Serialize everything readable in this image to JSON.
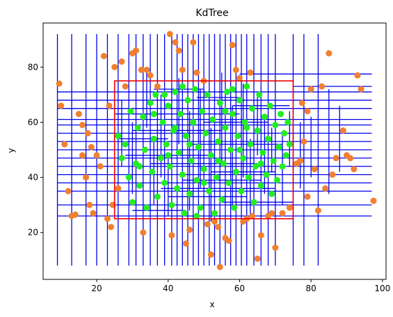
{
  "chart_data": {
    "type": "scatter",
    "title": "KdTree",
    "xlabel": "x",
    "ylabel": "y",
    "xlim": [
      5,
      101
    ],
    "ylim": [
      3,
      96
    ],
    "xticks": [
      20,
      40,
      60,
      80,
      100
    ],
    "yticks": [
      20,
      40,
      60,
      80
    ],
    "grid": false,
    "colors": {
      "inside": "#22ee22",
      "outside": "#f08030",
      "tree": "#0000ee",
      "query": "#ee0000"
    },
    "query_rect": {
      "x0": 25,
      "x1": 75,
      "y0": 25,
      "y1": 75
    },
    "tree_xmin": 9,
    "tree_xmax": 97,
    "tree_ymin": 8,
    "tree_ymax": 92,
    "vertical_splits": [
      [
        9,
        8,
        92
      ],
      [
        13,
        8,
        92
      ],
      [
        17,
        8,
        92
      ],
      [
        20,
        8,
        92
      ],
      [
        23,
        8,
        92
      ],
      [
        26,
        8,
        92
      ],
      [
        29,
        8,
        92
      ],
      [
        31,
        8,
        92
      ],
      [
        33,
        8,
        92
      ],
      [
        35,
        8,
        92
      ],
      [
        37,
        8,
        92
      ],
      [
        39,
        8,
        92
      ],
      [
        41,
        8,
        92
      ],
      [
        42.5,
        8,
        92
      ],
      [
        44,
        8,
        92
      ],
      [
        45.5,
        8,
        92
      ],
      [
        47,
        8,
        92
      ],
      [
        48.5,
        8,
        92
      ],
      [
        50,
        8,
        92
      ],
      [
        51.5,
        8,
        92
      ],
      [
        53,
        8,
        92
      ],
      [
        54.5,
        8,
        92
      ],
      [
        56,
        8,
        92
      ],
      [
        57.5,
        8,
        92
      ],
      [
        59,
        8,
        92
      ],
      [
        60.5,
        8,
        92
      ],
      [
        62,
        8,
        92
      ],
      [
        64,
        8,
        92
      ],
      [
        66,
        8,
        92
      ],
      [
        68,
        8,
        92
      ],
      [
        70,
        8,
        92
      ],
      [
        75,
        8,
        92
      ],
      [
        78,
        8,
        92
      ],
      [
        82,
        8,
        92
      ],
      [
        27,
        44,
        68
      ],
      [
        30,
        34,
        60
      ],
      [
        34,
        58,
        78
      ],
      [
        36,
        30,
        55
      ],
      [
        38,
        40,
        70
      ],
      [
        40,
        26,
        48
      ],
      [
        43,
        52,
        76
      ],
      [
        46,
        28,
        64
      ],
      [
        49,
        36,
        72
      ],
      [
        52,
        24,
        58
      ],
      [
        55,
        46,
        78
      ],
      [
        58,
        30,
        66
      ],
      [
        61,
        40,
        74
      ],
      [
        63,
        26,
        54
      ],
      [
        65,
        48,
        70
      ],
      [
        67,
        34,
        62
      ],
      [
        69,
        42,
        58
      ],
      [
        72,
        30,
        56
      ],
      [
        74,
        44,
        64
      ],
      [
        77,
        36,
        60
      ],
      [
        80,
        40,
        62
      ],
      [
        85,
        34,
        72
      ],
      [
        88,
        42,
        66
      ]
    ],
    "horizontal_splits": [
      [
        9,
        97,
        26
      ],
      [
        9,
        97,
        30
      ],
      [
        9,
        97,
        35
      ],
      [
        9,
        97,
        38
      ],
      [
        9,
        97,
        41
      ],
      [
        9,
        97,
        44
      ],
      [
        9,
        97,
        47
      ],
      [
        9,
        97,
        50
      ],
      [
        9,
        97,
        53
      ],
      [
        9,
        97,
        56
      ],
      [
        9,
        97,
        59
      ],
      [
        9,
        97,
        61
      ],
      [
        9,
        97,
        65
      ],
      [
        9,
        97,
        68
      ],
      [
        9,
        97,
        71
      ],
      [
        60,
        97,
        77.5
      ],
      [
        75,
        97,
        73
      ],
      [
        25,
        60,
        63
      ],
      [
        30,
        55,
        57
      ],
      [
        28,
        52,
        48
      ],
      [
        35,
        65,
        45
      ],
      [
        38,
        70,
        36
      ],
      [
        40,
        62,
        33
      ],
      [
        44,
        66,
        39
      ],
      [
        46,
        72,
        52
      ],
      [
        48,
        60,
        69
      ],
      [
        50,
        68,
        60
      ],
      [
        52,
        70,
        42
      ],
      [
        36,
        50,
        72
      ],
      [
        30,
        45,
        28
      ],
      [
        55,
        75,
        31
      ],
      [
        26,
        40,
        54
      ],
      [
        58,
        74,
        66
      ],
      [
        42,
        58,
        75
      ]
    ],
    "points_outside": [
      [
        9.5,
        74
      ],
      [
        10,
        66
      ],
      [
        11,
        52
      ],
      [
        13,
        26
      ],
      [
        14,
        26.5
      ],
      [
        15,
        63
      ],
      [
        16,
        59
      ],
      [
        17,
        40
      ],
      [
        17.5,
        56
      ],
      [
        18,
        30
      ],
      [
        18.5,
        51
      ],
      [
        19,
        27
      ],
      [
        20,
        48
      ],
      [
        21,
        44
      ],
      [
        22,
        84
      ],
      [
        23,
        25
      ],
      [
        23.5,
        66
      ],
      [
        24,
        22
      ],
      [
        24.5,
        30
      ],
      [
        25,
        80
      ],
      [
        27,
        82
      ],
      [
        28,
        73
      ],
      [
        30,
        85
      ],
      [
        31,
        86
      ],
      [
        32.5,
        79
      ],
      [
        33,
        20
      ],
      [
        34,
        79
      ],
      [
        35,
        77
      ],
      [
        37,
        73
      ],
      [
        40.5,
        92
      ],
      [
        41,
        19
      ],
      [
        42,
        89
      ],
      [
        43,
        86
      ],
      [
        44,
        79
      ],
      [
        45,
        16
      ],
      [
        46,
        21
      ],
      [
        47,
        89
      ],
      [
        48,
        78
      ],
      [
        50,
        75
      ],
      [
        51,
        23
      ],
      [
        52,
        12
      ],
      [
        53,
        24
      ],
      [
        54,
        22
      ],
      [
        54.5,
        7.5
      ],
      [
        56,
        18
      ],
      [
        57,
        17
      ],
      [
        58,
        88
      ],
      [
        59,
        79
      ],
      [
        60,
        76
      ],
      [
        61,
        24
      ],
      [
        62,
        25
      ],
      [
        63,
        78
      ],
      [
        63.5,
        26
      ],
      [
        65,
        10.5
      ],
      [
        66,
        19
      ],
      [
        68,
        26
      ],
      [
        69,
        27
      ],
      [
        70,
        14.5
      ],
      [
        72,
        27
      ],
      [
        74,
        29
      ],
      [
        76,
        45
      ],
      [
        77,
        46
      ],
      [
        77.5,
        67
      ],
      [
        78,
        53
      ],
      [
        79,
        33
      ],
      [
        80,
        72
      ],
      [
        81,
        43
      ],
      [
        82,
        28
      ],
      [
        83,
        73
      ],
      [
        84,
        36
      ],
      [
        85,
        85
      ],
      [
        86,
        41
      ],
      [
        87,
        47
      ],
      [
        89,
        57
      ],
      [
        90,
        48
      ],
      [
        91,
        47
      ],
      [
        92,
        43
      ],
      [
        93,
        77
      ],
      [
        94,
        72
      ],
      [
        97.5,
        31.5
      ],
      [
        16,
        48
      ],
      [
        12,
        35
      ],
      [
        26,
        36
      ],
      [
        79,
        64
      ]
    ],
    "points_inside": [
      [
        26,
        55
      ],
      [
        27,
        47
      ],
      [
        28,
        52
      ],
      [
        29,
        40
      ],
      [
        29.5,
        64
      ],
      [
        30,
        31
      ],
      [
        31,
        45
      ],
      [
        31.5,
        58
      ],
      [
        32,
        37
      ],
      [
        33,
        62
      ],
      [
        33.5,
        50
      ],
      [
        34,
        29
      ],
      [
        35,
        67
      ],
      [
        35.5,
        42
      ],
      [
        36,
        54
      ],
      [
        36.5,
        70
      ],
      [
        37,
        33
      ],
      [
        38,
        47
      ],
      [
        38.5,
        60
      ],
      [
        39,
        38
      ],
      [
        39.5,
        52
      ],
      [
        40,
        66
      ],
      [
        40.5,
        44
      ],
      [
        41,
        30
      ],
      [
        41.5,
        57
      ],
      [
        42,
        71
      ],
      [
        42.5,
        36
      ],
      [
        43,
        49
      ],
      [
        43.5,
        63
      ],
      [
        44,
        41
      ],
      [
        44.5,
        27
      ],
      [
        45,
        55
      ],
      [
        45.5,
        68
      ],
      [
        46,
        34
      ],
      [
        46.5,
        46
      ],
      [
        47,
        60
      ],
      [
        47.5,
        72
      ],
      [
        48,
        39
      ],
      [
        48.5,
        51
      ],
      [
        49,
        29
      ],
      [
        49.5,
        64
      ],
      [
        50,
        43
      ],
      [
        50.5,
        56
      ],
      [
        51,
        70
      ],
      [
        51.5,
        35
      ],
      [
        52,
        48
      ],
      [
        52.5,
        61
      ],
      [
        53,
        27
      ],
      [
        53.5,
        40
      ],
      [
        54,
        53
      ],
      [
        54.5,
        67
      ],
      [
        55,
        32
      ],
      [
        55.5,
        45
      ],
      [
        56,
        58
      ],
      [
        56.5,
        71
      ],
      [
        57,
        38
      ],
      [
        57.5,
        50
      ],
      [
        58,
        63
      ],
      [
        58.5,
        29
      ],
      [
        59,
        42
      ],
      [
        59.5,
        55
      ],
      [
        60,
        68
      ],
      [
        60.5,
        35
      ],
      [
        61,
        47
      ],
      [
        61.5,
        60
      ],
      [
        62,
        73
      ],
      [
        62.5,
        40
      ],
      [
        63,
        52
      ],
      [
        63.5,
        65
      ],
      [
        64,
        31
      ],
      [
        64.5,
        44
      ],
      [
        65,
        57
      ],
      [
        65.5,
        70
      ],
      [
        66,
        37
      ],
      [
        66.5,
        49
      ],
      [
        67,
        62
      ],
      [
        67.5,
        41
      ],
      [
        68,
        54
      ],
      [
        68.5,
        66
      ],
      [
        69,
        34
      ],
      [
        69.5,
        46
      ],
      [
        70,
        59
      ],
      [
        70.5,
        39
      ],
      [
        71,
        51
      ],
      [
        71.5,
        63
      ],
      [
        72,
        44
      ],
      [
        72.5,
        56
      ],
      [
        73,
        48
      ],
      [
        73.5,
        60
      ],
      [
        74,
        52
      ],
      [
        39,
        70
      ],
      [
        44,
        73
      ],
      [
        58,
        72
      ],
      [
        48,
        26
      ],
      [
        32,
        44
      ],
      [
        36,
        63
      ],
      [
        46,
        52
      ],
      [
        54,
        46
      ],
      [
        62,
        58
      ],
      [
        66,
        45
      ],
      [
        40,
        48
      ],
      [
        50,
        38
      ],
      [
        56,
        64
      ],
      [
        42,
        58
      ],
      [
        60,
        50
      ]
    ]
  }
}
